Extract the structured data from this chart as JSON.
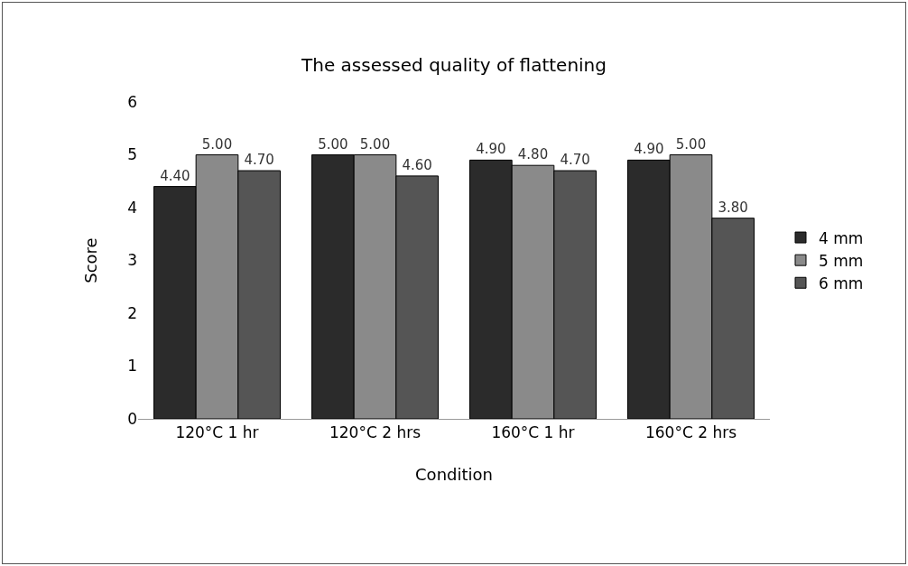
{
  "chart_data": {
    "type": "bar",
    "title": "The assessed quality of flattening",
    "xlabel": "Condition",
    "ylabel": "Score",
    "categories": [
      "120°C 1 hr",
      "120°C 2 hrs",
      "160°C 1 hr",
      "160°C 2 hrs"
    ],
    "series": [
      {
        "name": "4 mm",
        "color": "#2b2b2b",
        "values": [
          4.4,
          5.0,
          4.9,
          4.9
        ],
        "value_labels": [
          "4.40",
          "5.00",
          "4.90",
          "4.90"
        ]
      },
      {
        "name": "5 mm",
        "color": "#8a8a8a",
        "values": [
          5.0,
          5.0,
          4.8,
          5.0
        ],
        "value_labels": [
          "5.00",
          "5.00",
          "4.80",
          "5.00"
        ]
      },
      {
        "name": "6 mm",
        "color": "#555555",
        "values": [
          4.7,
          4.6,
          4.7,
          3.8
        ],
        "value_labels": [
          "4.70",
          "4.60",
          "4.70",
          "3.80"
        ]
      }
    ],
    "ylim": [
      0,
      6
    ],
    "yticks": [
      0,
      1,
      2,
      3,
      4,
      5,
      6
    ],
    "grid": false,
    "legend": "right"
  }
}
